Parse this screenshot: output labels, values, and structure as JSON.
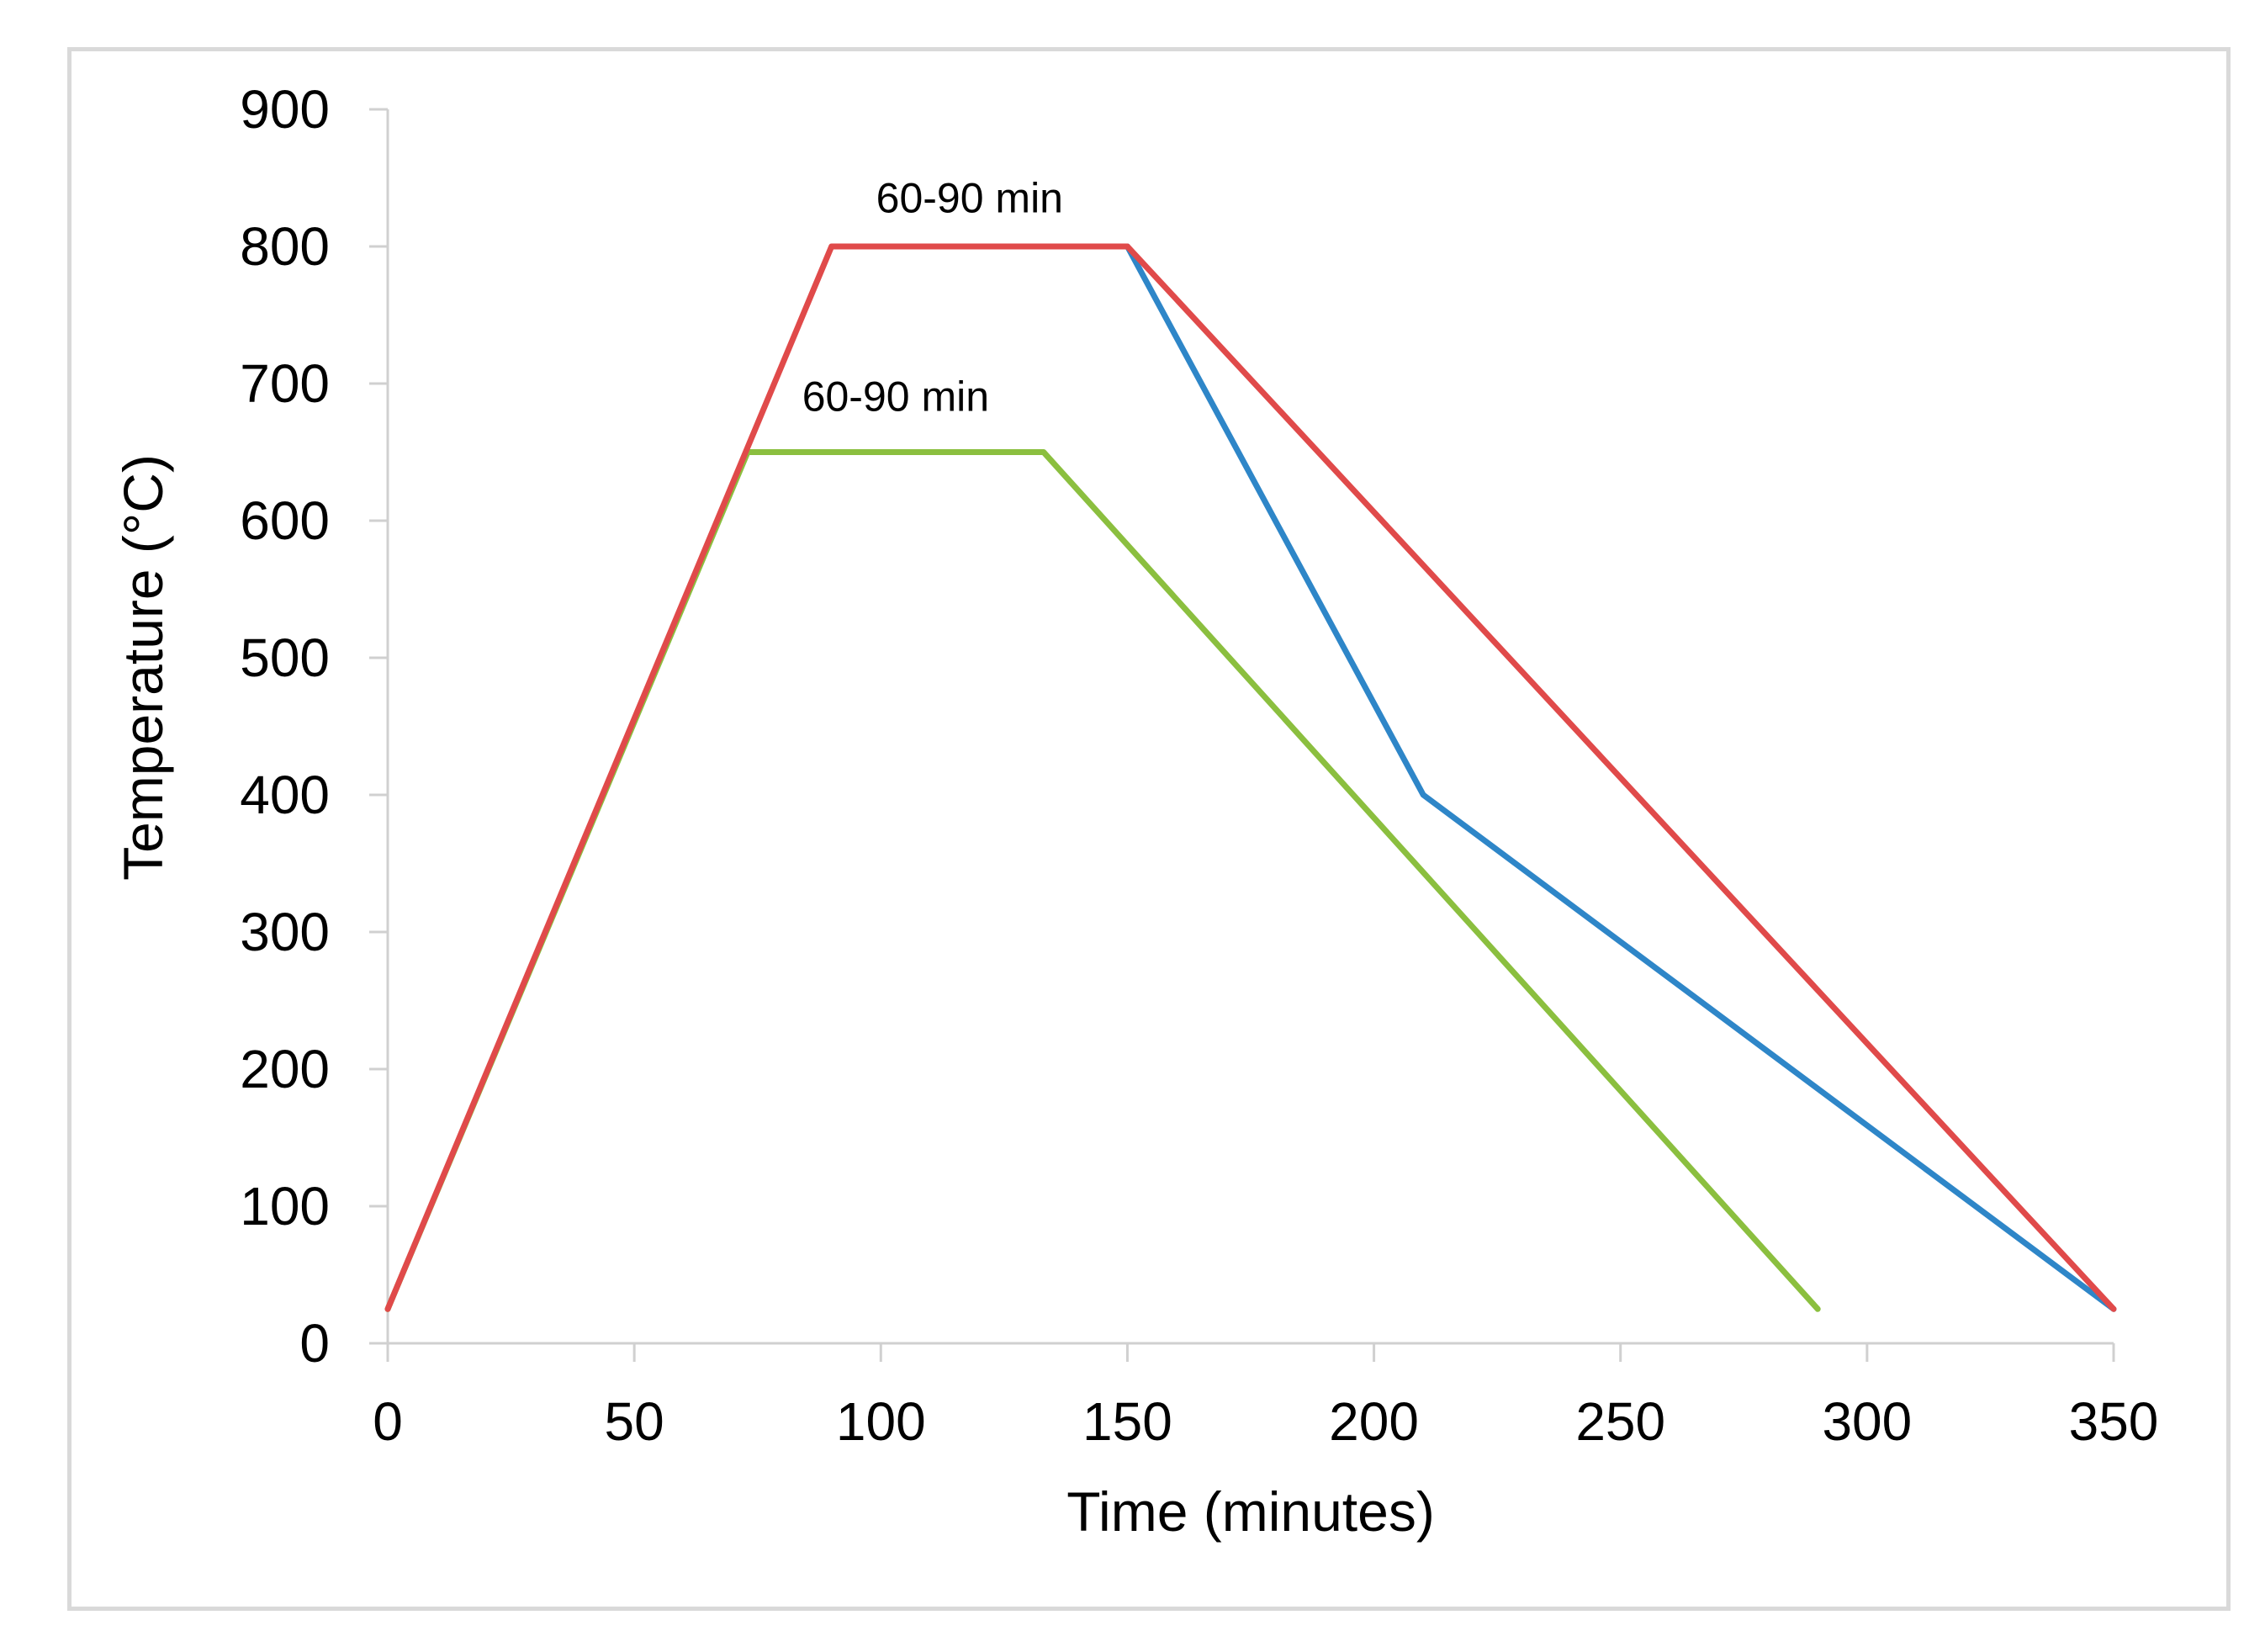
{
  "chart_data": {
    "type": "line",
    "title": "",
    "xlabel": "Time (minutes)",
    "ylabel": "Temperature (°C)",
    "xlim": [
      0,
      350
    ],
    "ylim": [
      0,
      900
    ],
    "xticks": [
      0,
      50,
      100,
      150,
      200,
      250,
      300,
      350
    ],
    "yticks": [
      0,
      100,
      200,
      300,
      400,
      500,
      600,
      700,
      800,
      900
    ],
    "grid": false,
    "legend": "none",
    "series": [
      {
        "name": "red",
        "color": "#e04a4a",
        "points": [
          [
            0,
            25
          ],
          [
            90,
            800
          ],
          [
            150,
            800
          ],
          [
            350,
            25
          ]
        ]
      },
      {
        "name": "blue",
        "color": "#2e86c8",
        "points": [
          [
            150,
            800
          ],
          [
            210,
            400
          ],
          [
            350,
            25
          ]
        ]
      },
      {
        "name": "green",
        "color": "#8bbf3f",
        "points": [
          [
            0,
            25
          ],
          [
            73,
            650
          ],
          [
            133,
            650
          ],
          [
            290,
            25
          ]
        ]
      }
    ],
    "annotations": [
      {
        "text": "60-90 min",
        "x": 118,
        "y": 825
      },
      {
        "text": "60-90 min",
        "x": 103,
        "y": 680
      }
    ]
  }
}
